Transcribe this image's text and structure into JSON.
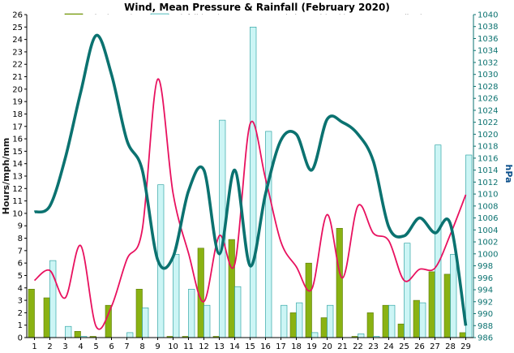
{
  "chart_data": {
    "type": "bar",
    "title": "Wind, Mean Pressure & Rainfall (February 2020)",
    "ylabel": "Hours/mph/mm",
    "y2label": "hPa",
    "ylim": [
      0,
      26
    ],
    "y2lim": [
      986,
      1040
    ],
    "x": [
      1,
      2,
      3,
      4,
      5,
      6,
      7,
      8,
      9,
      10,
      11,
      12,
      13,
      14,
      15,
      16,
      17,
      18,
      19,
      20,
      21,
      22,
      23,
      24,
      25,
      26,
      27,
      28,
      29
    ],
    "legend_position": "top",
    "grid": false,
    "series": [
      {
        "name": "Calm (Hours)",
        "kind": "bar",
        "axis": "left",
        "color": "#8ab212",
        "values": [
          3.9,
          3.2,
          0,
          0.5,
          0.1,
          2.6,
          0,
          3.9,
          0,
          0.1,
          0.1,
          7.2,
          0.1,
          7.9,
          0,
          0,
          0,
          2,
          6,
          1.6,
          8.8,
          0.1,
          2,
          2.6,
          1.1,
          3,
          5.3,
          5.1,
          0.4
        ]
      },
      {
        "name": "Rainfall (mm)",
        "kind": "bar",
        "axis": "left",
        "color": "#ccf5f5",
        "values": [
          0,
          6.2,
          0.9,
          0.1,
          0,
          0,
          0.4,
          2.4,
          12.3,
          6.7,
          3.9,
          2.6,
          17.5,
          4.1,
          25,
          16.6,
          2.6,
          2.8,
          0.4,
          2.6,
          0,
          0.3,
          0.1,
          2.6,
          7.6,
          2.8,
          15.5,
          6.7,
          14.7
        ]
      },
      {
        "name": "Mean Wind Speed (mph)",
        "kind": "line",
        "axis": "left",
        "color": "#e8115f",
        "values": [
          4.6,
          5.4,
          3.2,
          7.4,
          0.9,
          2.5,
          6.3,
          8.7,
          20.8,
          11.6,
          6.8,
          2.9,
          8.2,
          5.9,
          17.2,
          12.8,
          7.7,
          5.7,
          3.9,
          9.9,
          4.8,
          10.6,
          8.4,
          7.8,
          4.6,
          5.5,
          5.6,
          8.3,
          11.5
        ]
      },
      {
        "name": "Pressure (hPa)",
        "kind": "line",
        "axis": "right",
        "color": "#0b7270",
        "values": [
          1007,
          1008,
          1016,
          1027,
          1036.5,
          1030,
          1019,
          1014,
          999,
          999.5,
          1010.5,
          1014,
          1000,
          1014,
          998,
          1010,
          1019,
          1020,
          1014,
          1022.5,
          1022,
          1020,
          1015.5,
          1004.5,
          1003,
          1006,
          1003.5,
          1005,
          988
        ]
      }
    ]
  }
}
